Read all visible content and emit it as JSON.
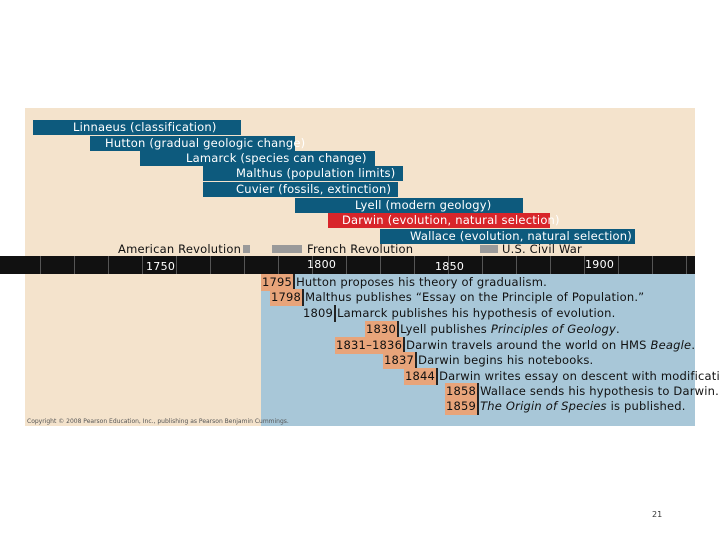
{
  "lifespans": [
    {
      "label": "Linnaeus (classification)"
    },
    {
      "label": "Hutton (gradual geologic change)"
    },
    {
      "label": "Lamarck (species can change)"
    },
    {
      "label": "Malthus (population limits)"
    },
    {
      "label": "Cuvier (fossils, extinction)"
    },
    {
      "label": "Lyell (modern geology)"
    },
    {
      "label": "Darwin (evolution, natural selection)"
    },
    {
      "label": "Wallace (evolution, natural selection)"
    }
  ],
  "history": [
    {
      "label": "American Revolution"
    },
    {
      "label": "French Revolution"
    },
    {
      "label": "U.S. Civil War"
    }
  ],
  "axis_years": [
    "1750",
    "1800",
    "1850",
    "1900"
  ],
  "events": [
    {
      "year": "1795",
      "text": "Hutton proposes his theory of gradualism."
    },
    {
      "year": "1798",
      "text": "Malthus publishes “Essay on the Principle of Population.”"
    },
    {
      "year": "1809",
      "text": "Lamarck publishes his hypothesis of evolution."
    },
    {
      "year": "1830",
      "text_before": "Lyell publishes ",
      "text_italic": "Principles of Geology",
      "text_after": "."
    },
    {
      "year": "1831–1836",
      "text_before": "Darwin travels around the world on HMS ",
      "text_italic": "Beagle",
      "text_after": "."
    },
    {
      "year": "1837",
      "text": "Darwin begins his notebooks."
    },
    {
      "year": "1844",
      "text": "Darwin writes essay on descent with modification."
    },
    {
      "year": "1858",
      "text": "Wallace sends his hypothesis to Darwin."
    },
    {
      "year": "1859",
      "text_italic": "The Origin of Species",
      "text_after": " is published."
    }
  ],
  "copyright": "Copyright © 2008 Pearson Education, Inc., publishing as Pearson Benjamin Cummings.",
  "page_number": "21"
}
